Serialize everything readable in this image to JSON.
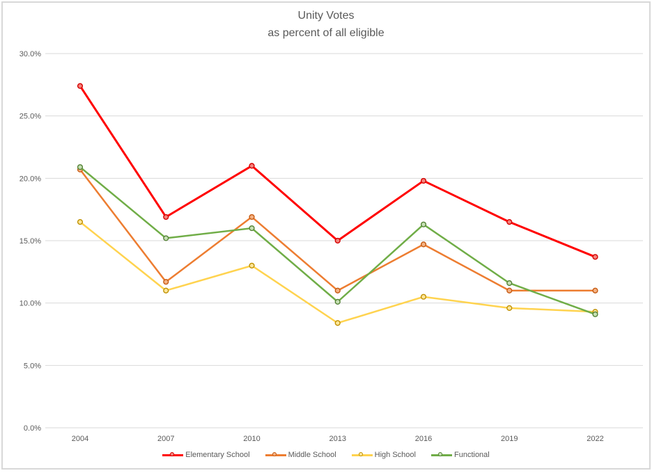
{
  "frame": {
    "background": "#FFFFFF",
    "border_color": "#D8D8D8"
  },
  "chart_data": {
    "type": "line",
    "title": "Unity Votes",
    "subtitle": "as percent of all eligible",
    "xlabel": "",
    "ylabel": "",
    "categories": [
      "2004",
      "2007",
      "2010",
      "2013",
      "2016",
      "2019",
      "2022"
    ],
    "series": [
      {
        "name": "Elementary School",
        "color": "#FF0000",
        "marker_fill": "#F4827B",
        "marker_stroke": "#D40000",
        "line_width": 3,
        "values": [
          27.4,
          16.9,
          21.0,
          15.0,
          19.8,
          16.5,
          13.7
        ]
      },
      {
        "name": "Middle School",
        "color": "#ED7D31",
        "marker_fill": "#F4B183",
        "marker_stroke": "#C55A11",
        "line_width": 2.5,
        "values": [
          20.7,
          11.7,
          16.9,
          11.0,
          14.7,
          11.0,
          11.0
        ]
      },
      {
        "name": "High School",
        "color": "#FFD34F",
        "marker_fill": "#FFE699",
        "marker_stroke": "#BF9000",
        "line_width": 2.5,
        "values": [
          16.5,
          11.0,
          13.0,
          8.4,
          10.5,
          9.6,
          9.3
        ]
      },
      {
        "name": "Functional",
        "color": "#70AD47",
        "marker_fill": "#C6E0B4",
        "marker_stroke": "#538135",
        "line_width": 2.5,
        "values": [
          20.9,
          15.2,
          16.0,
          10.1,
          16.3,
          11.6,
          9.1
        ]
      }
    ],
    "ylim": [
      0,
      30
    ],
    "ytick_step": 5,
    "ytick_labels": [
      "0.0%",
      "5.0%",
      "10.0%",
      "15.0%",
      "20.0%",
      "25.0%",
      "30.0%"
    ],
    "grid": true,
    "legend_position": "bottom",
    "gridline_color": "#D9D9D9",
    "axis_line_color": "#D9D9D9",
    "axis_text_color": "#595959",
    "title_color": "#595959",
    "legend_text_color": "#595959"
  }
}
